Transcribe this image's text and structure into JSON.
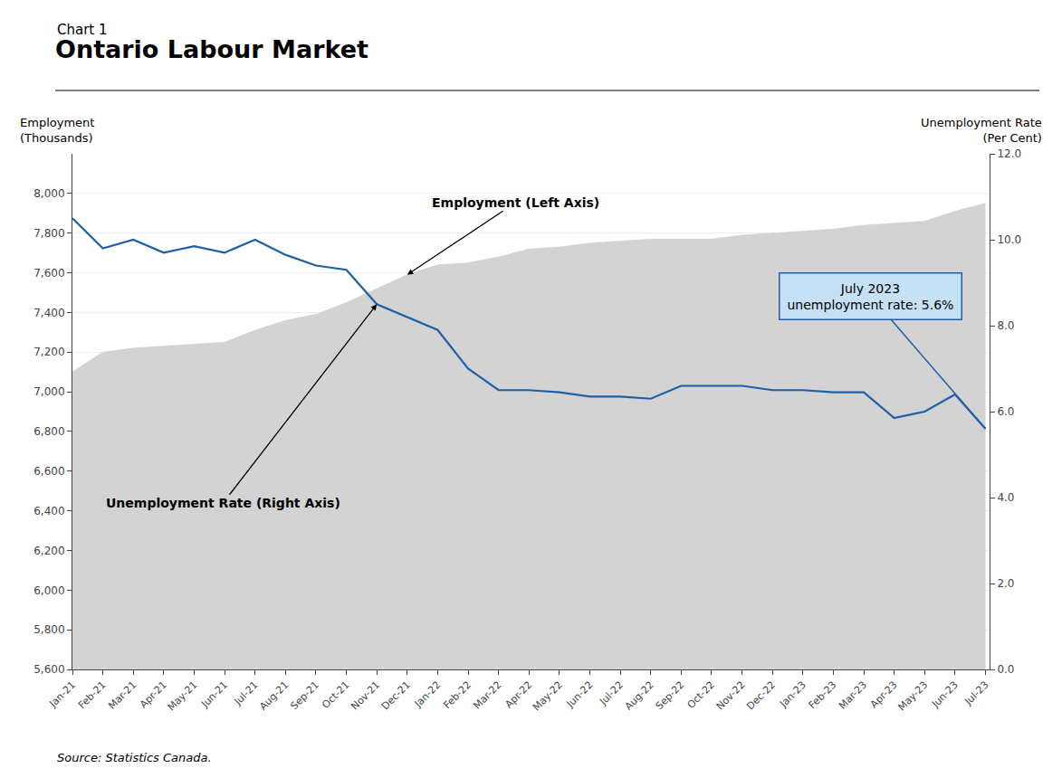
{
  "chart_data": {
    "type": "line",
    "subtitle": "Chart 1",
    "title": "Ontario Labour Market",
    "ylabel": "Employment\n(Thousands)",
    "y2label": "Unemployment Rate\n(Per Cent)",
    "source": "Source: Statistics Canada.",
    "categories": [
      "Jan-21",
      "Feb-21",
      "Mar-21",
      "Apr-21",
      "May-21",
      "Jun-21",
      "Jul-21",
      "Aug-21",
      "Sep-21",
      "Oct-21",
      "Nov-21",
      "Dec-21",
      "Jan-22",
      "Feb-22",
      "Mar-22",
      "Apr-22",
      "May-22",
      "Jun-22",
      "Jul-22",
      "Aug-22",
      "Sep-22",
      "Oct-22",
      "Nov-22",
      "Dec-22",
      "Jan-23",
      "Feb-23",
      "Mar-23",
      "Apr-23",
      "May-23",
      "Jun-23",
      "Jul-23"
    ],
    "series": [
      {
        "name": "Employment (Left Axis)",
        "type": "area",
        "color": "#c8c8c8",
        "values": [
          7100,
          7200,
          7220,
          7230,
          7240,
          7250,
          7310,
          7360,
          7390,
          7450,
          7520,
          7590,
          7640,
          7650,
          7680,
          7720,
          7730,
          7750,
          7760,
          7770,
          7770,
          7770,
          7790,
          7800,
          7810,
          7820,
          7840,
          7850,
          7860,
          7910,
          7950
        ]
      },
      {
        "name": "Unemployment Rate (Right Axis)",
        "type": "line",
        "color": "#1f5fa6",
        "axis": "y2",
        "values": [
          10.5,
          9.8,
          10.0,
          9.7,
          9.85,
          9.7,
          10.0,
          9.65,
          9.4,
          9.3,
          8.5,
          8.2,
          7.9,
          7.0,
          6.5,
          6.5,
          6.45,
          6.35,
          6.35,
          6.3,
          6.6,
          6.6,
          6.6,
          6.5,
          6.5,
          6.45,
          6.45,
          5.85,
          6.0,
          6.4,
          5.6
        ]
      }
    ],
    "ylim": [
      5600,
      8200
    ],
    "yticks": [
      {
        "value": 5600,
        "label": "5,600"
      },
      {
        "value": 5800,
        "label": "5,800"
      },
      {
        "value": 6000,
        "label": "6,000"
      },
      {
        "value": 6200,
        "label": "6,200"
      },
      {
        "value": 6400,
        "label": "6,400"
      },
      {
        "value": 6600,
        "label": "6,600"
      },
      {
        "value": 6800,
        "label": "6,800"
      },
      {
        "value": 7000,
        "label": "7,000"
      },
      {
        "value": 7200,
        "label": "7,200"
      },
      {
        "value": 7400,
        "label": "7,400"
      },
      {
        "value": 7600,
        "label": "7,600"
      },
      {
        "value": 7800,
        "label": "7,800"
      },
      {
        "value": 8000,
        "label": "8,000"
      }
    ],
    "y2lim": [
      0.0,
      12.0
    ],
    "y2ticks": [
      {
        "value": 0,
        "label": "0.0"
      },
      {
        "value": 2,
        "label": "2.0"
      },
      {
        "value": 4,
        "label": "4.0"
      },
      {
        "value": 6,
        "label": "6.0"
      },
      {
        "value": 8,
        "label": "8.0"
      },
      {
        "value": 10,
        "label": "10.0"
      },
      {
        "value": 12,
        "label": "12.0"
      }
    ],
    "grid": true,
    "annotations": [
      {
        "text": "July 2023\nunemployment rate: 5.6%",
        "color": "#c6e0f5"
      }
    ]
  }
}
